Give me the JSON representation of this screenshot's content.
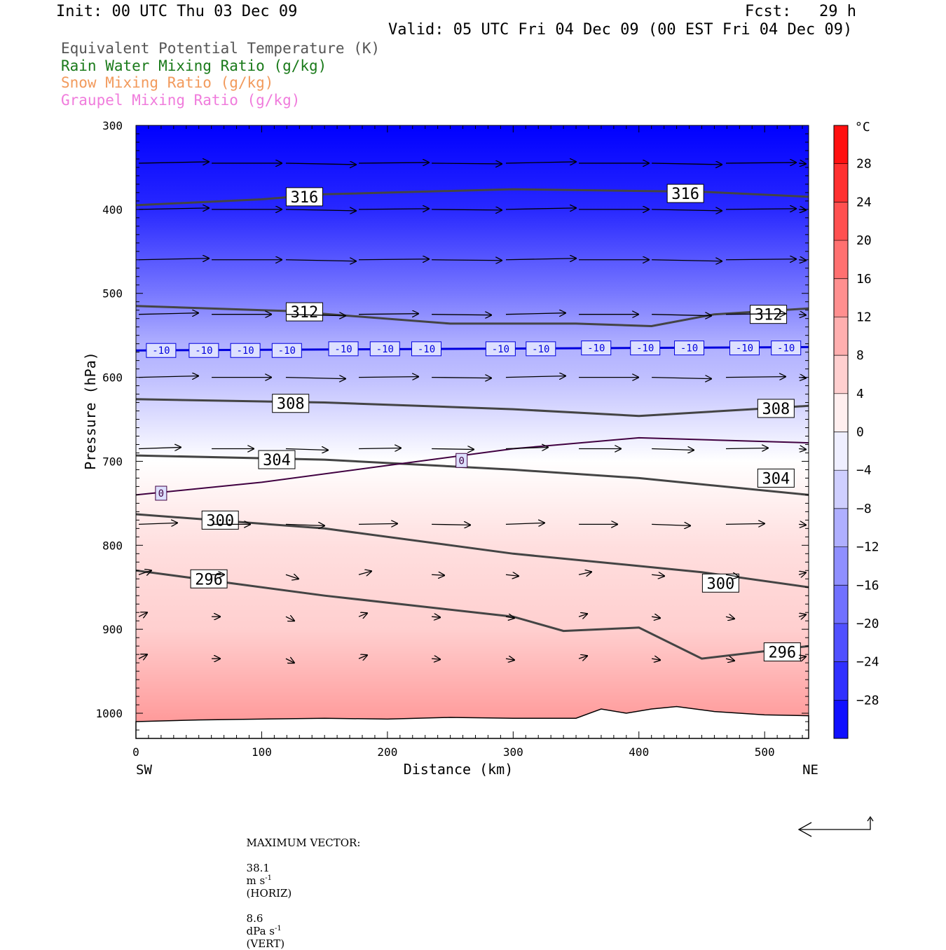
{
  "header": {
    "init": "Init: 00 UTC Thu 03 Dec 09",
    "fcst": "Fcst:   29 h",
    "valid": "Valid: 05 UTC Fri 04 Dec 09 (00 EST Fri 04 Dec 09)"
  },
  "legend": [
    {
      "label": "Equivalent Potential Temperature (K)",
      "color": "#555555"
    },
    {
      "label": "Rain Water Mixing Ratio (g/kg)",
      "color": "#1a7a1a"
    },
    {
      "label": "Snow Mixing Ratio (g/kg)",
      "color": "#f29a5c"
    },
    {
      "label": "Graupel Mixing Ratio (g/kg)",
      "color": "#f07cdc"
    }
  ],
  "footer": {
    "max_vector_label": "MAXIMUM VECTOR:",
    "horiz_value": "38.1",
    "horiz_unit": "m s",
    "horiz_exp": "-1",
    "horiz_tag": "(HORIZ)",
    "vert_value": "8.6",
    "vert_unit": "dPa s",
    "vert_exp": "-1",
    "vert_tag": "(VERT)"
  },
  "chart_data": {
    "type": "heatmap",
    "xlabel": "Distance (km)",
    "ylabel": "Pressure (hPa)",
    "x_end_labels": [
      "SW",
      "NE"
    ],
    "xlim": [
      0,
      535
    ],
    "ylim": [
      1030,
      300
    ],
    "x_ticks": [
      0,
      100,
      200,
      300,
      400,
      500
    ],
    "y_ticks": [
      300,
      400,
      500,
      600,
      700,
      800,
      900,
      1000
    ],
    "colorbar": {
      "unit": "°C",
      "range": [
        -32,
        32
      ],
      "ticks": [
        28,
        24,
        20,
        16,
        12,
        8,
        4,
        0,
        -4,
        -8,
        -12,
        -16,
        -20,
        -24,
        -28
      ]
    },
    "temperature_profile": [
      {
        "p": 300,
        "t": -32
      },
      {
        "p": 400,
        "t": -27
      },
      {
        "p": 500,
        "t": -17
      },
      {
        "p": 560,
        "t": -10
      },
      {
        "p": 600,
        "t": -8
      },
      {
        "p": 650,
        "t": -4
      },
      {
        "p": 700,
        "t": 0
      },
      {
        "p": 750,
        "t": 2
      },
      {
        "p": 800,
        "t": 4
      },
      {
        "p": 900,
        "t": 6
      },
      {
        "p": 950,
        "t": 9
      },
      {
        "p": 1000,
        "t": 12
      },
      {
        "p": 1030,
        "t": 14
      }
    ],
    "theta_e_contours": [
      {
        "value": 316,
        "points": [
          [
            0,
            395
          ],
          [
            100,
            388
          ],
          [
            150,
            382
          ],
          [
            300,
            376
          ],
          [
            450,
            379
          ],
          [
            535,
            385
          ]
        ],
        "labels": [
          [
            134,
            385
          ],
          [
            437,
            381
          ]
        ]
      },
      {
        "value": 312,
        "points": [
          [
            0,
            515
          ],
          [
            120,
            521
          ],
          [
            250,
            536
          ],
          [
            350,
            536
          ],
          [
            410,
            539
          ],
          [
            460,
            525
          ],
          [
            535,
            518
          ]
        ],
        "labels": [
          [
            134,
            522
          ],
          [
            503,
            525
          ]
        ]
      },
      {
        "value": 308,
        "points": [
          [
            0,
            626
          ],
          [
            150,
            630
          ],
          [
            300,
            638
          ],
          [
            400,
            646
          ],
          [
            535,
            634
          ]
        ],
        "labels": [
          [
            123,
            631
          ],
          [
            509,
            637
          ]
        ]
      },
      {
        "value": 304,
        "points": [
          [
            0,
            693
          ],
          [
            150,
            698
          ],
          [
            300,
            710
          ],
          [
            400,
            720
          ],
          [
            535,
            740
          ]
        ],
        "labels": [
          [
            112,
            698
          ],
          [
            509,
            720
          ]
        ]
      },
      {
        "value": 300,
        "points": [
          [
            0,
            763
          ],
          [
            150,
            780
          ],
          [
            300,
            810
          ],
          [
            450,
            832
          ],
          [
            535,
            850
          ]
        ],
        "labels": [
          [
            67,
            770
          ],
          [
            465,
            845
          ]
        ]
      },
      {
        "value": 296,
        "points": [
          [
            0,
            830
          ],
          [
            150,
            860
          ],
          [
            300,
            885
          ],
          [
            340,
            902
          ],
          [
            400,
            898
          ],
          [
            450,
            935
          ],
          [
            535,
            920
          ]
        ],
        "labels": [
          [
            58,
            840
          ],
          [
            514,
            927
          ]
        ]
      }
    ],
    "isotherm_contours": [
      {
        "value": -10,
        "points": [
          [
            0,
            568
          ],
          [
            535,
            564
          ]
        ],
        "labels": [
          [
            20,
            568
          ],
          [
            54,
            568
          ],
          [
            87,
            568
          ],
          [
            120,
            568
          ],
          [
            165,
            566
          ],
          [
            198,
            566
          ],
          [
            231,
            566
          ],
          [
            290,
            566
          ],
          [
            322,
            566
          ],
          [
            366,
            565
          ],
          [
            405,
            565
          ],
          [
            440,
            565
          ],
          [
            484,
            565
          ],
          [
            517,
            565
          ]
        ]
      },
      {
        "value": 0,
        "points": [
          [
            0,
            740
          ],
          [
            100,
            725
          ],
          [
            200,
            705
          ],
          [
            300,
            685
          ],
          [
            400,
            672
          ],
          [
            535,
            678
          ]
        ],
        "labels": [
          [
            20,
            738
          ],
          [
            259,
            699
          ]
        ]
      }
    ],
    "vector_rows_hpa": [
      345,
      400,
      460,
      525,
      600,
      685,
      775,
      835,
      885,
      935
    ],
    "vector_cols_km": [
      0,
      58,
      117,
      175,
      233,
      292,
      350,
      408,
      467,
      525
    ],
    "max_vector_horiz": 38.1,
    "max_vector_vert": 8.6
  }
}
